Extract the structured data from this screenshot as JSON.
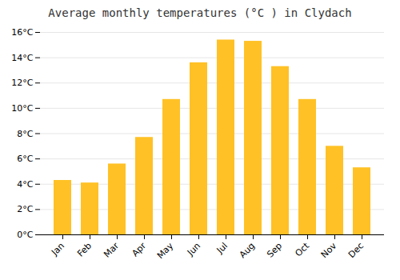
{
  "chart_data": {
    "type": "bar",
    "title": "Average monthly temperatures (°C ) in Clydach",
    "categories": [
      "Jan",
      "Feb",
      "Mar",
      "Apr",
      "May",
      "Jun",
      "Jul",
      "Aug",
      "Sep",
      "Oct",
      "Nov",
      "Dec"
    ],
    "values": [
      4.3,
      4.1,
      5.6,
      7.7,
      10.7,
      13.6,
      15.4,
      15.3,
      13.3,
      10.7,
      7.0,
      5.3
    ],
    "color": "#FFC125",
    "ylim": [
      0,
      16
    ],
    "yticks": [
      {
        "value": 0,
        "label": "0°C"
      },
      {
        "value": 2,
        "label": "2°C"
      },
      {
        "value": 4,
        "label": "4°C"
      },
      {
        "value": 6,
        "label": "6°C"
      },
      {
        "value": 8,
        "label": "8°C"
      },
      {
        "value": 10,
        "label": "10°C"
      },
      {
        "value": 12,
        "label": "12°C"
      },
      {
        "value": 14,
        "label": "14°C"
      },
      {
        "value": 16,
        "label": "16°C"
      }
    ],
    "grid": true
  }
}
